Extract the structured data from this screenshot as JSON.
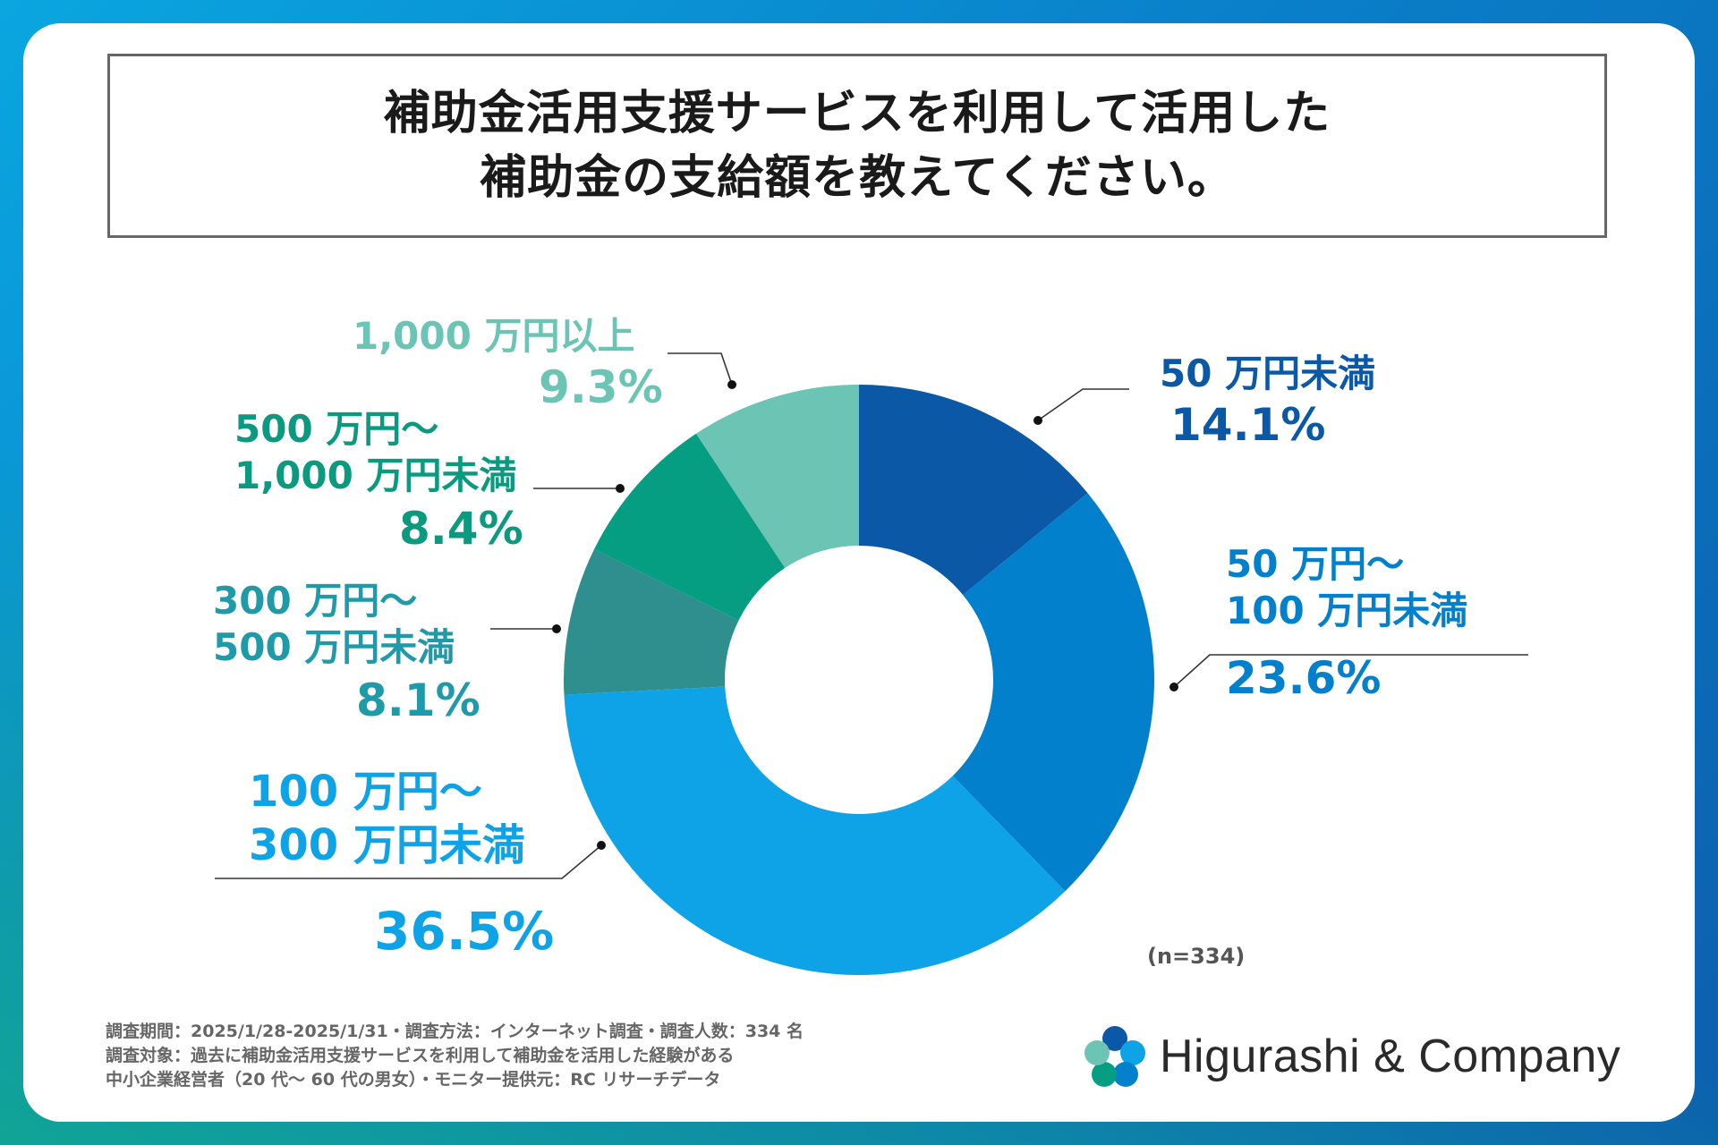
{
  "title": {
    "line1": "補助金活用支援サービスを利用して活用した",
    "line2": "補助金の支給額を教えてください。"
  },
  "chart_data": {
    "type": "pie",
    "donut": true,
    "title": "補助金活用支援サービスを利用して活用した補助金の支給額を教えてください。",
    "sample_size": "(n=334)",
    "slices": [
      {
        "label_lines": [
          "50 万円未満"
        ],
        "value": 14.1,
        "pct_label": "14.1%",
        "color": "#0b59a6"
      },
      {
        "label_lines": [
          "50 万円～",
          "100 万円未満"
        ],
        "value": 23.6,
        "pct_label": "23.6%",
        "color": "#0380cc"
      },
      {
        "label_lines": [
          "100 万円～",
          "300 万円未満"
        ],
        "value": 36.5,
        "pct_label": "36.5%",
        "color": "#0ea2e6"
      },
      {
        "label_lines": [
          "300 万円～",
          "500 万円未満"
        ],
        "value": 8.1,
        "pct_label": "8.1%",
        "color": "#2f8f8e"
      },
      {
        "label_lines": [
          "500 万円～",
          "1,000 万円未満"
        ],
        "value": 8.4,
        "pct_label": "8.4%",
        "color": "#069e83"
      },
      {
        "label_lines": [
          "1,000 万円以上"
        ],
        "value": 9.3,
        "pct_label": "9.3%",
        "color": "#6cc4b4"
      }
    ],
    "label_colors": [
      "#0b59a6",
      "#0380cc",
      "#0ea2e6",
      "#1f9aa8",
      "#0b9a80",
      "#6cc4b4"
    ]
  },
  "footer": {
    "line1": "調査期間：2025/1/28-2025/1/31・調査方法：インターネット調査・調査人数：334 名",
    "line2": "調査対象：過去に補助金活用支援サービスを利用して補助金を活用した経験がある",
    "line3": "中小企業経営者（20 代～ 60 代の男女）・モニター提供元：RC リサーチデータ"
  },
  "brand": {
    "name": "Higurashi & Company",
    "colors": [
      "#0b59a6",
      "#0ea2e6",
      "#069e83",
      "#6cc4b4"
    ]
  }
}
